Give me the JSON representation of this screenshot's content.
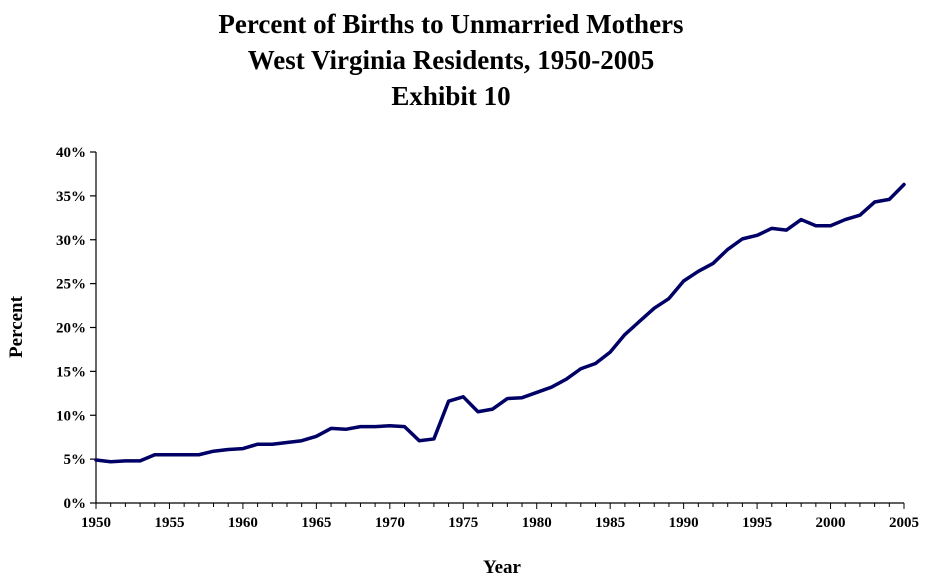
{
  "chart_data": {
    "type": "line",
    "title": "Percent of Births to Unmarried Mothers",
    "subtitle": "West Virginia Residents, 1950-2005",
    "exhibit": "Exhibit 10",
    "xlabel": "Year",
    "ylabel": "Percent",
    "xlim": [
      1950,
      2005
    ],
    "ylim": [
      0,
      40
    ],
    "x_ticks": [
      "1950",
      "1955",
      "1960",
      "1965",
      "1970",
      "1975",
      "1980",
      "1985",
      "1990",
      "1995",
      "2000",
      "2005"
    ],
    "y_ticks": [
      "0%",
      "5%",
      "10%",
      "15%",
      "20%",
      "25%",
      "30%",
      "35%",
      "40%"
    ],
    "grid": false,
    "line_color": "#000066",
    "series": [
      {
        "x": [
          1950,
          1951,
          1952,
          1953,
          1954,
          1955,
          1956,
          1957,
          1958,
          1959,
          1960,
          1961,
          1962,
          1963,
          1964,
          1965,
          1966,
          1967,
          1968,
          1969,
          1970,
          1971,
          1972,
          1973,
          1974,
          1975,
          1976,
          1977,
          1978,
          1979,
          1980,
          1981,
          1982,
          1983,
          1984,
          1985,
          1986,
          1987,
          1988,
          1989,
          1990,
          1991,
          1992,
          1993,
          1994,
          1995,
          1996,
          1997,
          1998,
          1999,
          2000,
          2001,
          2002,
          2003,
          2004,
          2005
        ],
        "values": [
          4.9,
          4.7,
          4.8,
          4.8,
          5.5,
          5.5,
          5.5,
          5.5,
          5.9,
          6.1,
          6.2,
          6.7,
          6.7,
          6.9,
          7.1,
          7.6,
          8.5,
          8.4,
          8.7,
          8.7,
          8.8,
          8.7,
          7.1,
          7.3,
          11.6,
          12.1,
          10.4,
          10.7,
          11.9,
          12.0,
          12.6,
          13.2,
          14.1,
          15.3,
          15.9,
          17.2,
          19.2,
          20.7,
          22.2,
          23.3,
          25.3,
          26.4,
          27.3,
          28.9,
          30.1,
          30.5,
          31.3,
          31.1,
          32.3,
          31.6,
          31.6,
          32.3,
          32.8,
          34.3,
          34.6,
          36.3
        ]
      }
    ]
  }
}
